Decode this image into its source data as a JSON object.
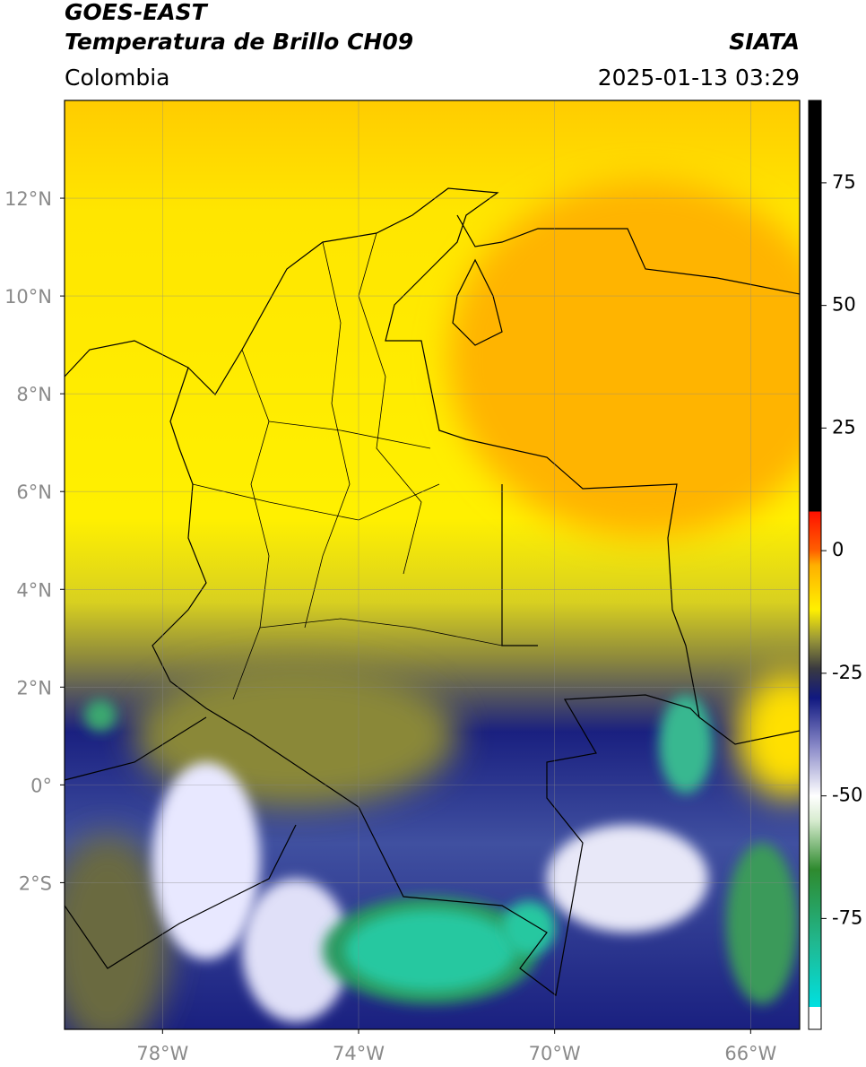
{
  "chart_data": {
    "type": "map",
    "title": "GOES-EAST",
    "subtitle": "Temperatura de Brillo CH09",
    "source": "SIATA",
    "region": "Colombia",
    "datetime": "2025-01-13 03:29",
    "xlim": [
      -80,
      -65
    ],
    "ylim": [
      -5,
      14
    ],
    "xticks": [
      {
        "value": -78,
        "label": "78°W"
      },
      {
        "value": -74,
        "label": "74°W"
      },
      {
        "value": -70,
        "label": "70°W"
      },
      {
        "value": -66,
        "label": "66°W"
      }
    ],
    "yticks": [
      {
        "value": 12,
        "label": "12°N"
      },
      {
        "value": 10,
        "label": "10°N"
      },
      {
        "value": 8,
        "label": "8°N"
      },
      {
        "value": 6,
        "label": "6°N"
      },
      {
        "value": 4,
        "label": "4°N"
      },
      {
        "value": 2,
        "label": "2°N"
      },
      {
        "value": 0,
        "label": "0°"
      },
      {
        "value": -2,
        "label": "2°S"
      }
    ],
    "grid": true,
    "colorbar": {
      "lim": [
        -97.6,
        91.8
      ],
      "ticks": [
        75,
        50,
        25,
        0,
        -25,
        -50,
        -75
      ],
      "stops": [
        {
          "value": -97.6,
          "color": "#ffffff"
        },
        {
          "value": -93,
          "color": "#ffffff"
        },
        {
          "value": -93,
          "color": "#00e0e0"
        },
        {
          "value": -80,
          "color": "#20b890"
        },
        {
          "value": -65,
          "color": "#2e8a2e"
        },
        {
          "value": -55,
          "color": "#d8ecd0"
        },
        {
          "value": -50,
          "color": "#ffffff"
        },
        {
          "value": -40,
          "color": "#8a8ac8"
        },
        {
          "value": -30,
          "color": "#101880"
        },
        {
          "value": -24,
          "color": "#3a3a40"
        },
        {
          "value": -18,
          "color": "#9a9838"
        },
        {
          "value": -12,
          "color": "#fff000"
        },
        {
          "value": -3,
          "color": "#ffb000"
        },
        {
          "value": 0,
          "color": "#ff6000"
        },
        {
          "value": 8,
          "color": "#ff1000"
        },
        {
          "value": 8,
          "color": "#000000"
        },
        {
          "value": 91.8,
          "color": "#000000"
        }
      ]
    }
  }
}
